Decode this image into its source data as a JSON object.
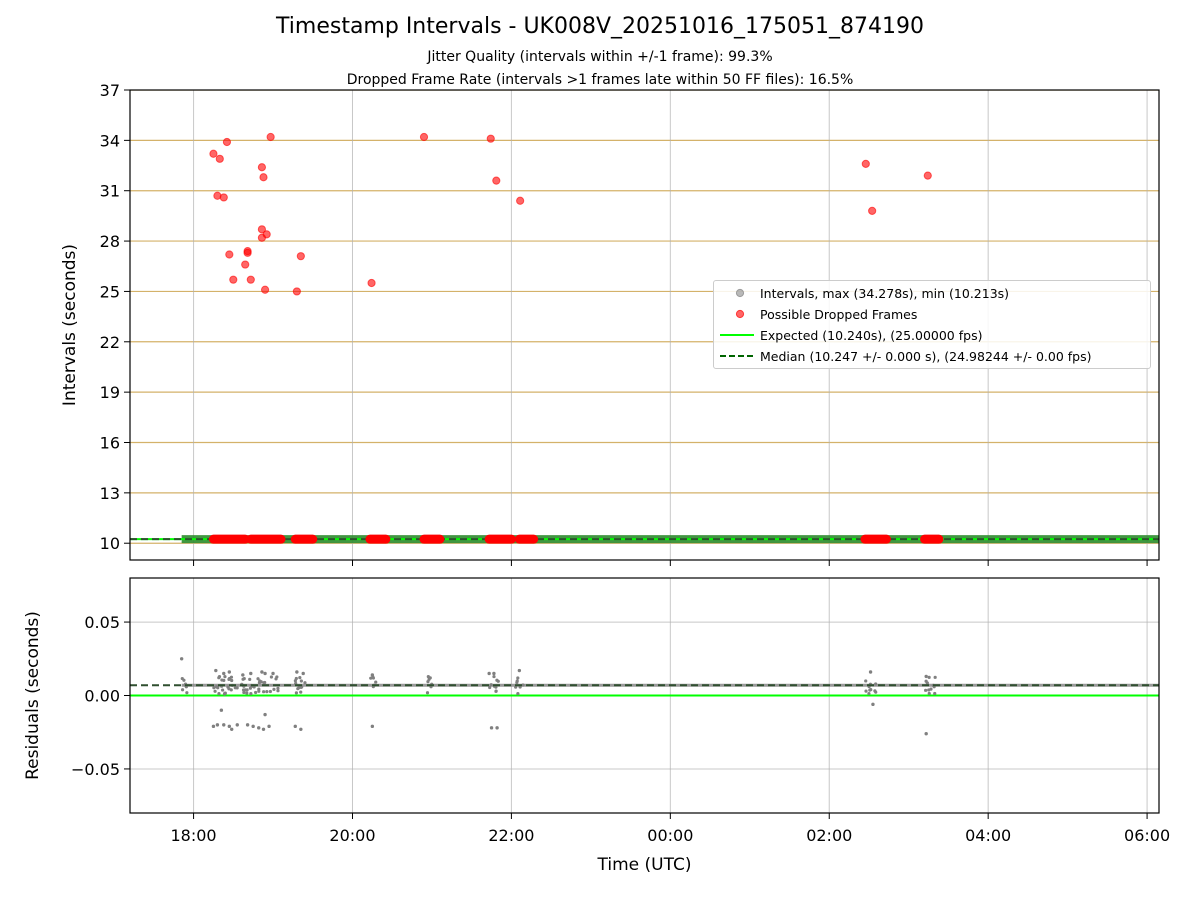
{
  "figure": {
    "title": "Timestamp Intervals - UK008V_20251016_175051_874190",
    "subtitle_1": "Jitter Quality (intervals within +/-1 frame): 99.3%",
    "subtitle_2": "Dropped Frame Rate (intervals >1 frames late within 50 FF files): 16.5%"
  },
  "legend": {
    "intervals": "Intervals, max (34.278s), min (10.213s)",
    "dropped": "Possible Dropped Frames",
    "expected": "Expected (10.240s), (25.00000 fps)",
    "median": "Median (10.247 +/- 0.000 s), (24.98244 +/- 0.00 fps)"
  },
  "colors": {
    "intervals": "#808080",
    "dropped": "#ff0000",
    "expected": "#00ff00",
    "median": "#006400",
    "hgrid_top": "#d4b26a",
    "grid": "#b0b0b0",
    "band": "#2e8b2e"
  },
  "chart_data": [
    {
      "type": "scatter",
      "ylabel": "Intervals (seconds)",
      "ylim": [
        9,
        37
      ],
      "yticks": [
        10,
        13,
        16,
        19,
        22,
        25,
        28,
        31,
        34,
        37
      ],
      "ytick_labels": [
        "10",
        "13",
        "16",
        "19",
        "22",
        "25",
        "28",
        "31",
        "34",
        "37"
      ],
      "xlim_hours": [
        17.2,
        30.15
      ],
      "xticks_hours": [
        18,
        20,
        22,
        24,
        26,
        28,
        30
      ],
      "xtick_labels": [
        "18:00",
        "20:00",
        "22:00",
        "00:00",
        "02:00",
        "04:00",
        "06:00"
      ],
      "grid": true,
      "legend_position": "center-right",
      "expected_value": 10.24,
      "median_value": 10.247,
      "series": [
        {
          "name": "Possible Dropped Frames",
          "points": [
            [
              18.25,
              33.2
            ],
            [
              18.33,
              32.9
            ],
            [
              18.42,
              33.9
            ],
            [
              18.5,
              25.7
            ],
            [
              18.3,
              30.7
            ],
            [
              18.38,
              30.6
            ],
            [
              18.45,
              27.2
            ],
            [
              18.65,
              26.6
            ],
            [
              18.68,
              27.4
            ],
            [
              18.72,
              25.7
            ],
            [
              18.68,
              27.3
            ],
            [
              18.86,
              32.4
            ],
            [
              18.88,
              31.8
            ],
            [
              18.86,
              28.7
            ],
            [
              18.86,
              28.2
            ],
            [
              18.92,
              28.4
            ],
            [
              18.97,
              34.2
            ],
            [
              18.9,
              25.1
            ],
            [
              19.3,
              25.0
            ],
            [
              19.35,
              27.1
            ],
            [
              20.24,
              25.5
            ],
            [
              20.9,
              34.2
            ],
            [
              21.74,
              34.1
            ],
            [
              21.81,
              31.6
            ],
            [
              22.11,
              30.4
            ],
            [
              26.46,
              32.6
            ],
            [
              26.54,
              29.8
            ],
            [
              27.24,
              31.9
            ]
          ]
        },
        {
          "name": "Possible Dropped Frames (near expected)",
          "clusters": [
            [
              18.25,
              18.65
            ],
            [
              18.72,
              19.1
            ],
            [
              19.28,
              19.5
            ],
            [
              20.22,
              20.42
            ],
            [
              20.9,
              21.1
            ],
            [
              21.72,
              22.0
            ],
            [
              22.1,
              22.28
            ],
            [
              26.45,
              26.72
            ],
            [
              27.2,
              27.38
            ]
          ],
          "value": 10.24
        }
      ]
    },
    {
      "type": "scatter",
      "ylabel": "Residuals (seconds)",
      "xlabel": "Time (UTC)",
      "ylim": [
        -0.08,
        0.08
      ],
      "yticks": [
        0.05,
        0.0,
        -0.05
      ],
      "ytick_labels": [
        "0.05",
        "0.00",
        "−0.05"
      ],
      "expected_residual": 0.0,
      "median_residual": 0.007,
      "series": [
        {
          "name": "Residuals",
          "outliers": [
            [
              17.85,
              0.025
            ],
            [
              18.28,
              0.017
            ],
            [
              18.38,
              0.015
            ],
            [
              18.45,
              0.016
            ],
            [
              18.62,
              0.014
            ],
            [
              18.72,
              0.015
            ],
            [
              18.86,
              0.016
            ],
            [
              18.9,
              0.015
            ],
            [
              19.0,
              0.015
            ],
            [
              19.3,
              0.016
            ],
            [
              19.38,
              0.015
            ],
            [
              20.25,
              0.014
            ],
            [
              21.72,
              0.015
            ],
            [
              21.78,
              0.015
            ],
            [
              22.1,
              0.017
            ],
            [
              26.52,
              0.016
            ],
            [
              27.22,
              0.013
            ],
            [
              18.25,
              -0.021
            ],
            [
              18.3,
              -0.02
            ],
            [
              18.35,
              -0.01
            ],
            [
              18.38,
              -0.02
            ],
            [
              18.45,
              -0.021
            ],
            [
              18.48,
              -0.023
            ],
            [
              18.55,
              -0.02
            ],
            [
              18.68,
              -0.02
            ],
            [
              18.75,
              -0.021
            ],
            [
              18.82,
              -0.022
            ],
            [
              18.88,
              -0.023
            ],
            [
              18.9,
              -0.013
            ],
            [
              18.95,
              -0.021
            ],
            [
              19.28,
              -0.021
            ],
            [
              19.35,
              -0.023
            ],
            [
              20.25,
              -0.021
            ],
            [
              21.75,
              -0.022
            ],
            [
              21.82,
              -0.022
            ],
            [
              26.55,
              -0.006
            ],
            [
              27.22,
              -0.026
            ]
          ]
        }
      ]
    }
  ],
  "top_ticks": [
    {
      "t": "10"
    },
    {
      "t": "13"
    },
    {
      "t": "16"
    },
    {
      "t": "19"
    },
    {
      "t": "22"
    },
    {
      "t": "25"
    },
    {
      "t": "28"
    },
    {
      "t": "31"
    },
    {
      "t": "34"
    },
    {
      "t": "37"
    }
  ]
}
